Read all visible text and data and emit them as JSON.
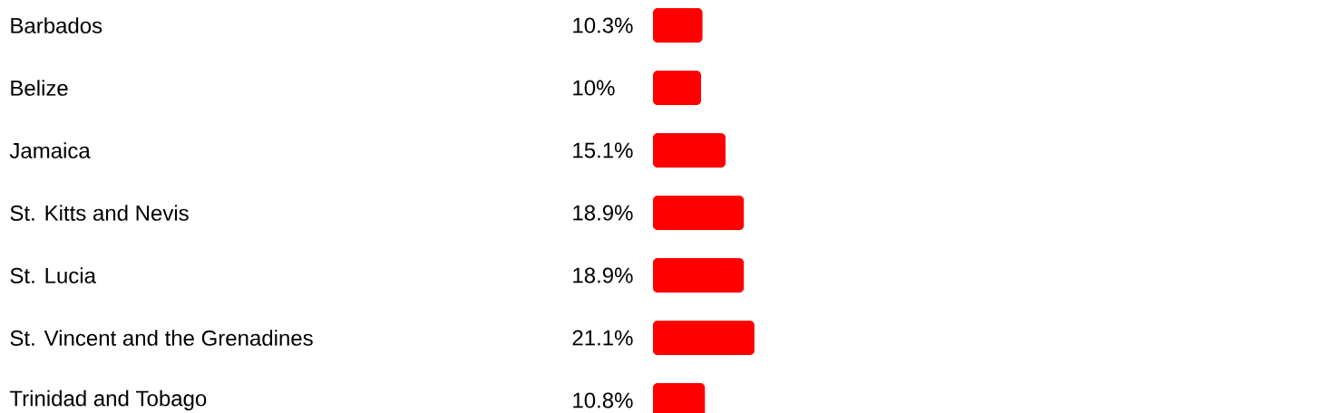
{
  "chart_data": {
    "type": "bar",
    "orientation": "horizontal",
    "color": "#ff0000",
    "categories": [
      "Barbados",
      "Belize",
      "Jamaica",
      "St. Kitts and Nevis",
      "St. Lucia",
      "St. Vincent and the Grenadines",
      "Trinidad and Tobago"
    ],
    "values": [
      10.3,
      10,
      15.1,
      18.9,
      18.9,
      21.1,
      10.8
    ],
    "value_labels": [
      "10.3%",
      "10%",
      "15.1%",
      "18.9%",
      "18.9%",
      "21.1%",
      "10.8%"
    ]
  }
}
